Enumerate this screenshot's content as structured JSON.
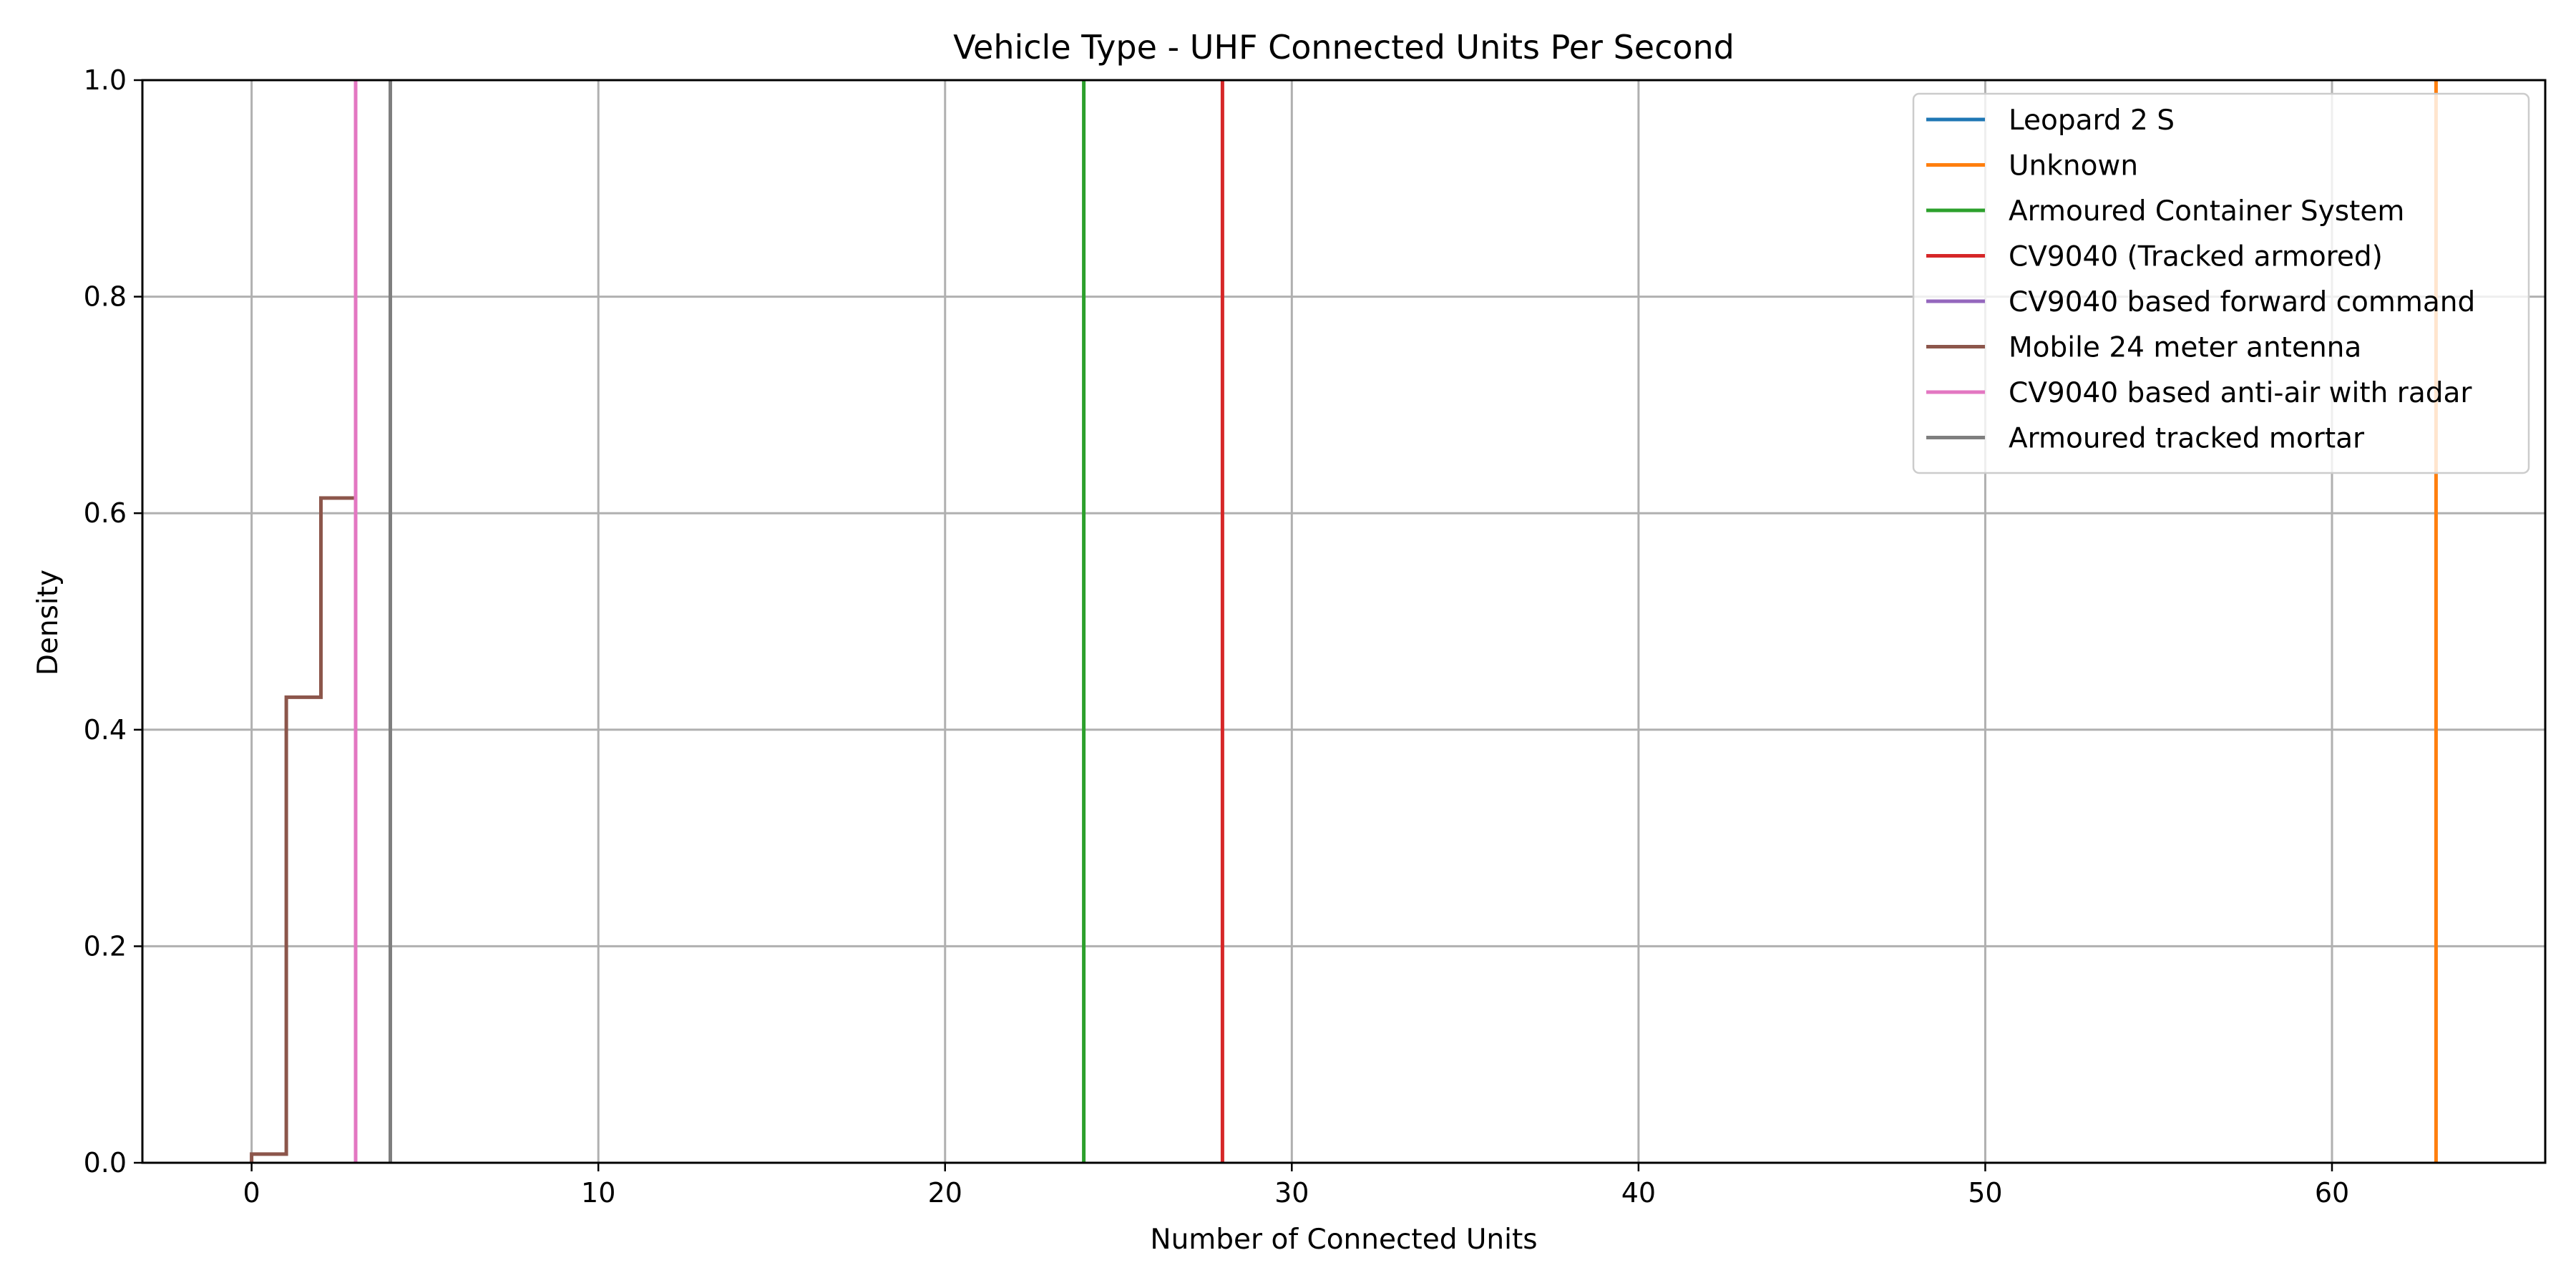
{
  "chart_data": {
    "type": "line",
    "chart_kind": "step histogram (density)",
    "title": "Vehicle Type - UHF Connected Units Per Second",
    "xlabel": "Number of Connected Units",
    "ylabel": "Density",
    "xlim": [
      -3.15,
      66.15
    ],
    "ylim": [
      0,
      1
    ],
    "x_ticks": [
      0,
      10,
      20,
      30,
      40,
      50,
      60
    ],
    "y_ticks": [
      0.0,
      0.2,
      0.4,
      0.6,
      0.8,
      1.0
    ],
    "x_tick_labels": [
      "0",
      "10",
      "20",
      "30",
      "40",
      "50",
      "60"
    ],
    "y_tick_labels": [
      "0.0",
      "0.2",
      "0.4",
      "0.6",
      "0.8",
      "1.0"
    ],
    "grid": true,
    "legend_position": "top-right",
    "series": [
      {
        "name": "Leopard 2 S",
        "color": "#1f77b4",
        "points": []
      },
      {
        "name": "Unknown",
        "color": "#ff7f0e",
        "points": [
          [
            63,
            0
          ],
          [
            63,
            1
          ]
        ]
      },
      {
        "name": "Armoured Container System",
        "color": "#2ca02c",
        "points": [
          [
            24,
            0
          ],
          [
            24,
            1
          ]
        ]
      },
      {
        "name": "CV9040 (Tracked armored)",
        "color": "#d62728",
        "points": [
          [
            28,
            0
          ],
          [
            28,
            1
          ]
        ]
      },
      {
        "name": "CV9040 based forward command",
        "color": "#9467bd",
        "points": []
      },
      {
        "name": "Mobile 24 meter antenna",
        "color": "#8c564b",
        "points": [
          [
            0,
            0
          ],
          [
            0,
            0.008
          ],
          [
            1,
            0.008
          ],
          [
            1,
            0.43
          ],
          [
            2,
            0.43
          ],
          [
            2,
            0.614
          ],
          [
            3,
            0.614
          ],
          [
            3,
            0
          ]
        ]
      },
      {
        "name": "CV9040 based anti-air with radar",
        "color": "#e377c2",
        "points": [
          [
            3,
            0
          ],
          [
            3,
            1
          ]
        ]
      },
      {
        "name": "Armoured tracked mortar",
        "color": "#7f7f7f",
        "points": [
          [
            4,
            0
          ],
          [
            4,
            1
          ]
        ]
      }
    ]
  }
}
